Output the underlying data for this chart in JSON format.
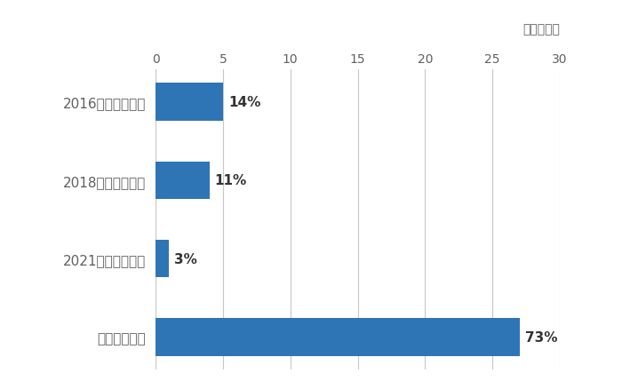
{
  "categories": [
    "2016年以降下げた",
    "2018年以降下げた",
    "2021年以降下げた",
    "下げていない"
  ],
  "values": [
    5.0,
    4.0,
    1.0,
    27.0
  ],
  "labels": [
    "14%",
    "11%",
    "3%",
    "73%"
  ],
  "bar_color": "#2E75B6",
  "xlim": [
    0,
    30
  ],
  "xticks": [
    0,
    5,
    10,
    15,
    20,
    25,
    30
  ],
  "xlabel_top": "（企業数）",
  "background_color": "#ffffff",
  "grid_color": "#c8c8c8",
  "label_color": "#606060",
  "pct_label_color": "#333333",
  "bar_height": 0.48
}
